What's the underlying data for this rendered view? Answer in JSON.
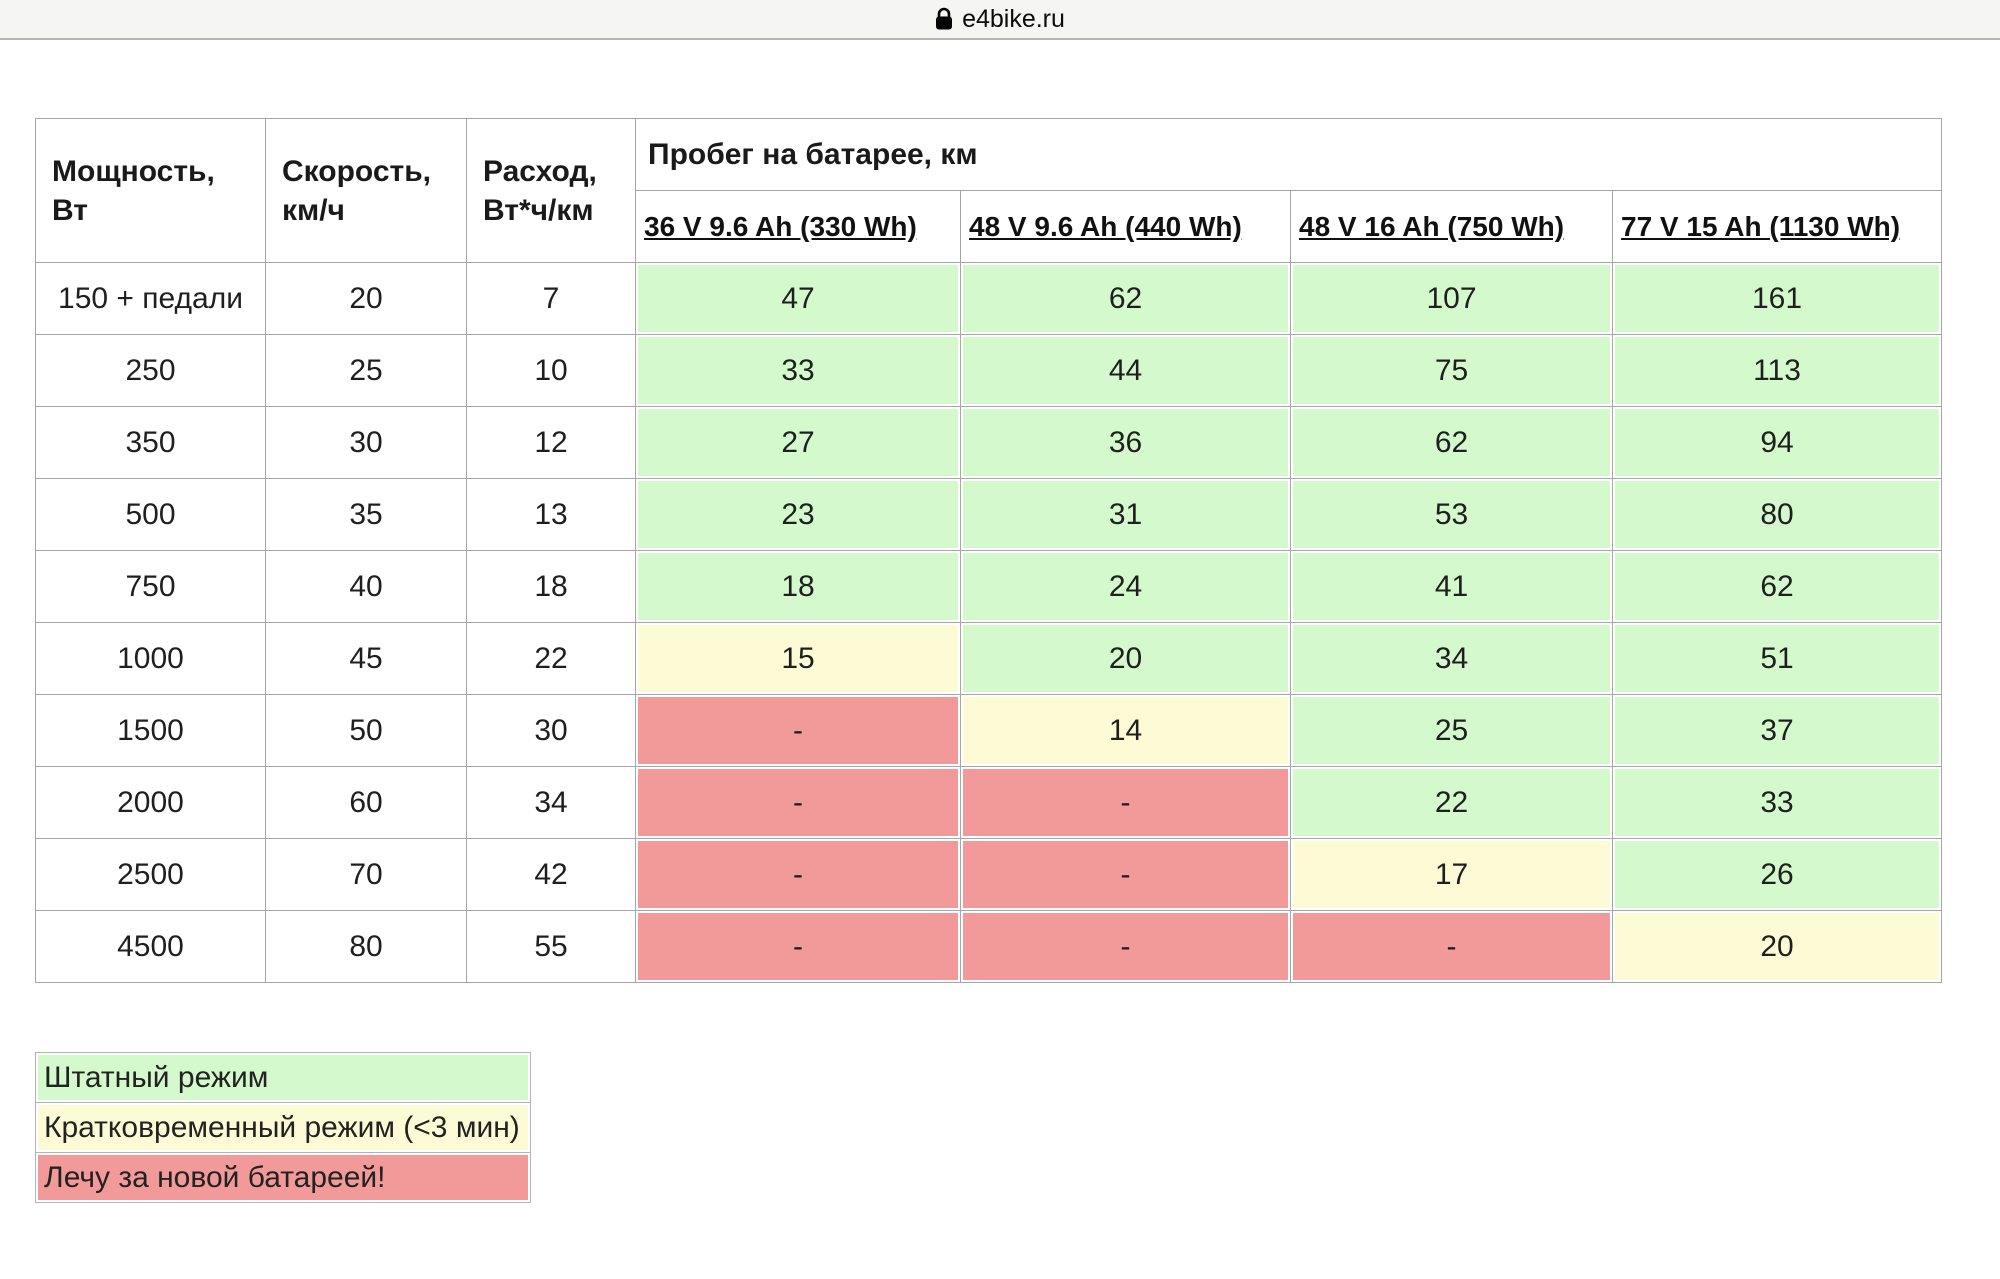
{
  "browser": {
    "url_label": "e4bike.ru"
  },
  "colors": {
    "green": "#d3f9cd",
    "yellow": "#fdfbd6",
    "red": "#f19a99",
    "border": "#a6a6a6"
  },
  "table": {
    "group_header": "Пробег на батарее, км",
    "col_headers": {
      "power": "Мощность, Вт",
      "speed": "Скорость, км/ч",
      "consumption": "Расход, Вт*ч/км"
    },
    "battery_headers": [
      "36 V 9.6 Ah (330 Wh)",
      "48 V 9.6 Ah (440 Wh)",
      "48 V 16 Ah (750 Wh)",
      "77 V 15 Ah (1130 Wh)"
    ],
    "rows": [
      {
        "power": "150 + педали",
        "speed": "20",
        "consumption": "7",
        "ranges": [
          {
            "value": "47",
            "status": "green"
          },
          {
            "value": "62",
            "status": "green"
          },
          {
            "value": "107",
            "status": "green"
          },
          {
            "value": "161",
            "status": "green"
          }
        ]
      },
      {
        "power": "250",
        "speed": "25",
        "consumption": "10",
        "ranges": [
          {
            "value": "33",
            "status": "green"
          },
          {
            "value": "44",
            "status": "green"
          },
          {
            "value": "75",
            "status": "green"
          },
          {
            "value": "113",
            "status": "green"
          }
        ]
      },
      {
        "power": "350",
        "speed": "30",
        "consumption": "12",
        "ranges": [
          {
            "value": "27",
            "status": "green"
          },
          {
            "value": "36",
            "status": "green"
          },
          {
            "value": "62",
            "status": "green"
          },
          {
            "value": "94",
            "status": "green"
          }
        ]
      },
      {
        "power": "500",
        "speed": "35",
        "consumption": "13",
        "ranges": [
          {
            "value": "23",
            "status": "green"
          },
          {
            "value": "31",
            "status": "green"
          },
          {
            "value": "53",
            "status": "green"
          },
          {
            "value": "80",
            "status": "green"
          }
        ]
      },
      {
        "power": "750",
        "speed": "40",
        "consumption": "18",
        "ranges": [
          {
            "value": "18",
            "status": "green"
          },
          {
            "value": "24",
            "status": "green"
          },
          {
            "value": "41",
            "status": "green"
          },
          {
            "value": "62",
            "status": "green"
          }
        ]
      },
      {
        "power": "1000",
        "speed": "45",
        "consumption": "22",
        "ranges": [
          {
            "value": "15",
            "status": "yellow"
          },
          {
            "value": "20",
            "status": "green"
          },
          {
            "value": "34",
            "status": "green"
          },
          {
            "value": "51",
            "status": "green"
          }
        ]
      },
      {
        "power": "1500",
        "speed": "50",
        "consumption": "30",
        "ranges": [
          {
            "value": "-",
            "status": "red"
          },
          {
            "value": "14",
            "status": "yellow"
          },
          {
            "value": "25",
            "status": "green"
          },
          {
            "value": "37",
            "status": "green"
          }
        ]
      },
      {
        "power": "2000",
        "speed": "60",
        "consumption": "34",
        "ranges": [
          {
            "value": "-",
            "status": "red"
          },
          {
            "value": "-",
            "status": "red"
          },
          {
            "value": "22",
            "status": "green"
          },
          {
            "value": "33",
            "status": "green"
          }
        ]
      },
      {
        "power": "2500",
        "speed": "70",
        "consumption": "42",
        "ranges": [
          {
            "value": "-",
            "status": "red"
          },
          {
            "value": "-",
            "status": "red"
          },
          {
            "value": "17",
            "status": "yellow"
          },
          {
            "value": "26",
            "status": "green"
          }
        ]
      },
      {
        "power": "4500",
        "speed": "80",
        "consumption": "55",
        "ranges": [
          {
            "value": "-",
            "status": "red"
          },
          {
            "value": "-",
            "status": "red"
          },
          {
            "value": "-",
            "status": "red"
          },
          {
            "value": "20",
            "status": "yellow"
          }
        ]
      }
    ]
  },
  "legend": [
    {
      "label": "Штатный режим",
      "status": "green"
    },
    {
      "label": "Кратковременный режим (<3 мин)",
      "status": "yellow"
    },
    {
      "label": "Лечу за новой батареей!",
      "status": "red"
    }
  ]
}
